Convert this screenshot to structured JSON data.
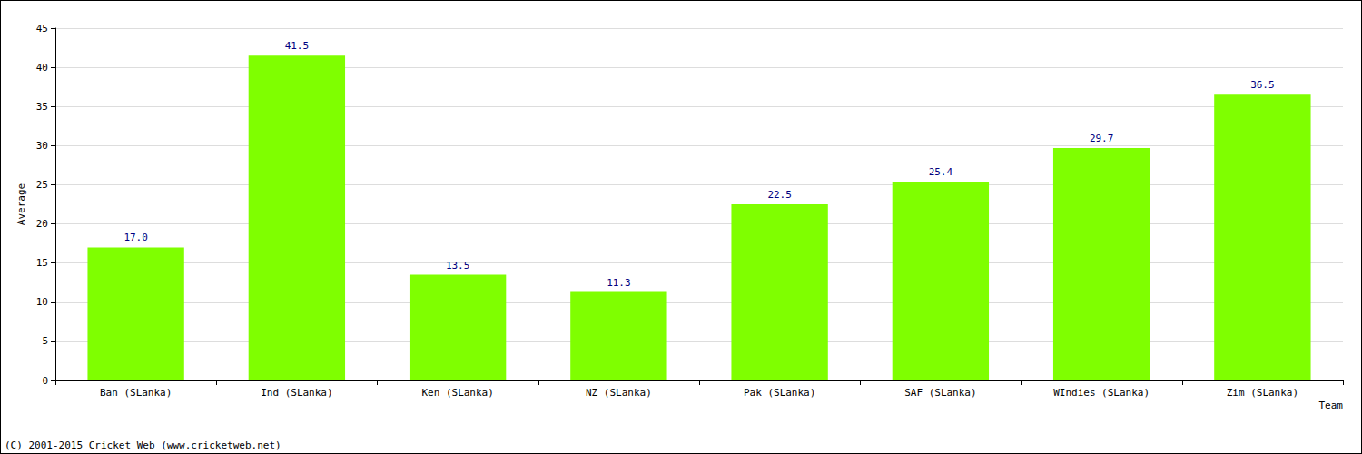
{
  "chart_data": {
    "type": "bar",
    "x_label": "Team",
    "y_label": "Average",
    "annotations": [
      "(C) 2001-2015 Cricket Web (www.cricketweb.net)"
    ],
    "categories": [
      "Ban (SLanka)",
      "Ind (SLanka)",
      "Ken (SLanka)",
      "NZ (SLanka)",
      "Pak (SLanka)",
      "SAF (SLanka)",
      "WIndies (SLanka)",
      "Zim (SLanka)"
    ],
    "values": [
      17,
      41.5,
      13.5,
      11.3,
      22.5,
      25.4,
      29.7,
      36.5
    ],
    "value_labels": [
      "17.0",
      "41.5",
      "13.5",
      "11.3",
      "22.5",
      "25.4",
      "29.7",
      "36.5"
    ],
    "color": "#7fff00",
    "ylim": [
      0,
      45
    ],
    "yticks": [
      0,
      5,
      10,
      15,
      20,
      25,
      30,
      35,
      40,
      45
    ],
    "grid": true,
    "data_labels": true
  }
}
